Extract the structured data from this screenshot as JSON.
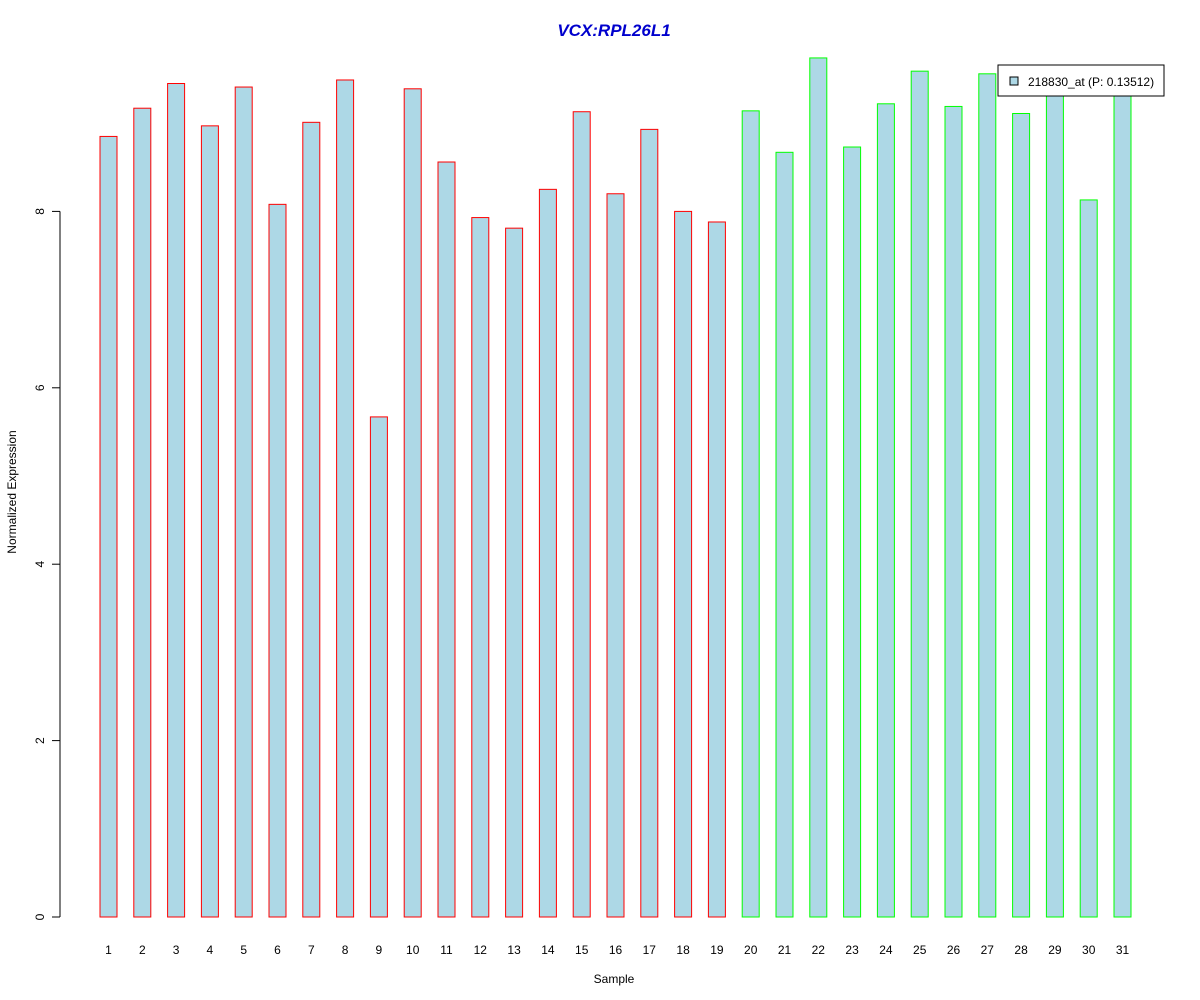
{
  "colors": {
    "bar_fill": "#add8e6",
    "group1_border": "#ff0000",
    "group2_border": "#00ff00",
    "title": "#0000cd",
    "axis": "#000000"
  },
  "chart_data": {
    "type": "bar",
    "title": "VCX:RPL26L1",
    "xlabel": "Sample",
    "ylabel": "Normalized Expression",
    "ylim": [
      0,
      9.8
    ],
    "yticks": [
      0,
      2,
      4,
      6,
      8
    ],
    "grid": false,
    "legend": {
      "label": "218830_at (P: 0.13512)",
      "placement": "top-right"
    },
    "categories": [
      "1",
      "2",
      "3",
      "4",
      "5",
      "6",
      "7",
      "8",
      "9",
      "10",
      "11",
      "12",
      "13",
      "14",
      "15",
      "16",
      "17",
      "18",
      "19",
      "20",
      "21",
      "22",
      "23",
      "24",
      "25",
      "26",
      "27",
      "28",
      "29",
      "30",
      "31"
    ],
    "values": [
      8.85,
      9.17,
      9.45,
      8.97,
      9.41,
      8.08,
      9.01,
      9.49,
      5.67,
      9.39,
      8.56,
      7.93,
      7.81,
      8.25,
      9.13,
      8.2,
      8.93,
      8.0,
      7.88,
      9.14,
      8.67,
      9.74,
      8.73,
      9.22,
      9.59,
      9.19,
      9.56,
      9.11,
      9.38,
      8.13,
      9.38
    ],
    "groups": [
      1,
      1,
      1,
      1,
      1,
      1,
      1,
      1,
      1,
      1,
      1,
      1,
      1,
      1,
      1,
      1,
      1,
      1,
      1,
      2,
      2,
      2,
      2,
      2,
      2,
      2,
      2,
      2,
      2,
      2,
      2
    ]
  }
}
